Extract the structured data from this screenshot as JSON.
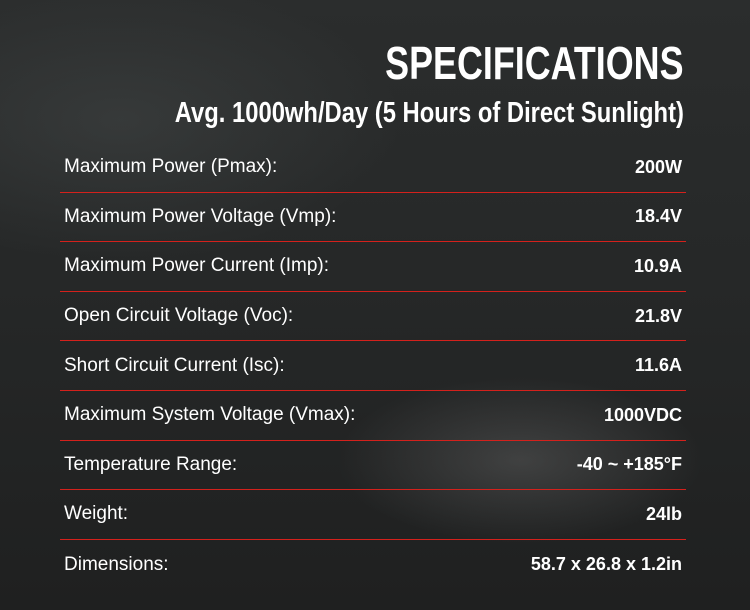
{
  "header": {
    "title": "SPECIFICATIONS",
    "subtitle": "Avg. 1000wh/Day (5 Hours of Direct Sunlight)"
  },
  "specs": [
    {
      "label": "Maximum Power (Pmax):",
      "value": "200W"
    },
    {
      "label": "Maximum Power Voltage (Vmp):",
      "value": "18.4V"
    },
    {
      "label": "Maximum Power Current (Imp):",
      "value": "10.9A"
    },
    {
      "label": "Open Circuit Voltage (Voc):",
      "value": "21.8V"
    },
    {
      "label": "Short Circuit Current (Isc):",
      "value": "11.6A"
    },
    {
      "label": "Maximum System Voltage (Vmax):",
      "value": "1000VDC"
    },
    {
      "label": "Temperature Range:",
      "value": "-40 ~ +185°F"
    },
    {
      "label": "Weight:",
      "value": "24lb"
    },
    {
      "label": "Dimensions:",
      "value": "58.7 x 26.8 x 1.2in"
    }
  ],
  "colors": {
    "divider": "#d4211c",
    "background": "#262828",
    "text": "#ffffff"
  }
}
